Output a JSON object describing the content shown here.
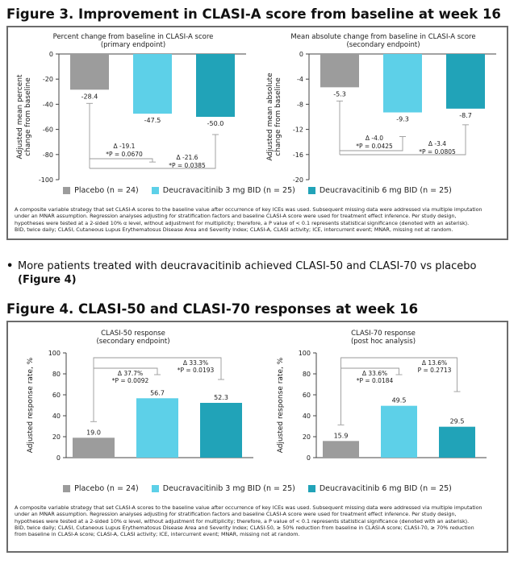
{
  "colors": {
    "placebo": "#9c9c9c",
    "deuc3": "#5dd0e8",
    "deuc6": "#21a3b8",
    "axis": "#444444",
    "bracket": "#9a9a9a",
    "border": "#6b6b6b"
  },
  "fig3": {
    "title": "Figure 3. Improvement in CLASI-A score from baseline at week 16",
    "legend": [
      "Placebo (n = 24)",
      "Deucravacitinib 3 mg BID (n = 25)",
      "Deucravacitinib 6 mg BID (n = 25)"
    ],
    "footnote_lines": [
      "A composite variable strategy that set CLASI-A scores to the baseline value after occurrence of key ICEs was used. Subsequent missing data were addressed via multiple imputation",
      "under an MNAR assumption. Regression analyses adjusting for stratification factors and baseline CLASI-A score were used for treatment effect inference. Per study design,",
      "hypotheses were tested at a 2-sided 10% α level, without adjustment for multiplicity; therefore, a P value of < 0.1 represents statistical significance (denoted with an asterisk).",
      "BID, twice daily; CLASI, Cutaneous Lupus Erythematosus Disease Area and Severity Index; CLASI-A, CLASI activity; ICE, intercurrent event; MNAR, missing not at random."
    ]
  },
  "bullet": {
    "text": "More patients treated with deucravacitinib achieved CLASI-50 and CLASI-70 vs placebo",
    "ref": "(Figure 4)"
  },
  "fig4": {
    "title": "Figure 4. CLASI-50 and CLASI-70 responses at week 16",
    "legend": [
      "Placebo (n = 24)",
      "Deucravacitinib 3 mg BID (n = 25)",
      "Deucravacitinib 6 mg BID (n = 25)"
    ],
    "footnote_lines": [
      "A composite variable strategy that set CLASI-A scores to the baseline value after occurrence of key ICEs was used. Subsequent missing data were addressed via multiple imputation",
      "under an MNAR assumption. Regression analyses adjusting for stratification factors and baseline CLASI-A score were used for treatment effect inference. Per study design,",
      "hypotheses were tested at a 2-sided 10% α level, without adjustment for multiplicity; therefore, a P value of < 0.1 represents statistical significance (denoted with an asterisk).",
      "BID, twice daily; CLASI, Cutaneous Lupus Erythematosus Disease Area and Severity Index; CLASI-50, ≥ 50% reduction from baseline in CLASI-A score; CLASI-70, ≥ 70% reduction",
      "from baseline in CLASI-A score; CLASI-A, CLASI activity; ICE, intercurrent event; MNAR, missing not at random."
    ]
  },
  "chart_data": [
    {
      "type": "bar",
      "title": "Percent change from baseline in CLASI-A score",
      "subtitle": "(primary endpoint)",
      "ylabel": "Adjusted mean percent change from baseline",
      "ylabel_lines": [
        "Adjusted mean percent",
        "change from baseline"
      ],
      "ylim": [
        -100,
        0
      ],
      "yticks": [
        0,
        -20,
        -40,
        -60,
        -80,
        -100
      ],
      "categories": [
        "Placebo",
        "Deucravacitinib 3 mg BID",
        "Deucravacitinib 6 mg BID"
      ],
      "values": [
        -28.4,
        -47.5,
        -50.0
      ],
      "value_labels": [
        "-28.4",
        "-47.5",
        "-50.0"
      ],
      "comparisons": [
        {
          "vs": "Deucravacitinib 3 mg BID",
          "delta": "Δ -19.1",
          "p": "*P = 0.0670"
        },
        {
          "vs": "Deucravacitinib 6 mg BID",
          "delta": "Δ -21.6",
          "p": "*P = 0.0385"
        }
      ]
    },
    {
      "type": "bar",
      "title": "Mean absolute change from baseline in CLASI-A score",
      "subtitle": "(secondary endpoint)",
      "ylabel": "Adjusted mean absolute change from baseline",
      "ylabel_lines": [
        "Adjusted mean absolute",
        "change from baseline"
      ],
      "ylim": [
        -20,
        0
      ],
      "yticks": [
        0,
        -4,
        -8,
        -12,
        -16,
        -20
      ],
      "categories": [
        "Placebo",
        "Deucravacitinib 3 mg BID",
        "Deucravacitinib 6 mg BID"
      ],
      "values": [
        -5.3,
        -9.3,
        -8.7
      ],
      "value_labels": [
        "-5.3",
        "-9.3",
        "-8.7"
      ],
      "comparisons": [
        {
          "vs": "Deucravacitinib 3 mg BID",
          "delta": "Δ -4.0",
          "p": "*P = 0.0425"
        },
        {
          "vs": "Deucravacitinib 6 mg BID",
          "delta": "Δ -3.4",
          "p": "*P = 0.0805"
        }
      ]
    },
    {
      "type": "bar",
      "title": "CLASI-50 response",
      "subtitle": "(secondary endpoint)",
      "ylabel": "Adjusted response rate, %",
      "ylabel_lines": [
        "Adjusted response rate, %"
      ],
      "ylim": [
        0,
        100
      ],
      "yticks": [
        0,
        20,
        40,
        60,
        80,
        100
      ],
      "categories": [
        "Placebo",
        "Deucravacitinib 3 mg BID",
        "Deucravacitinib 6 mg BID"
      ],
      "values": [
        19.0,
        56.7,
        52.3
      ],
      "value_labels": [
        "19.0",
        "56.7",
        "52.3"
      ],
      "comparisons": [
        {
          "vs": "Deucravacitinib 3 mg BID",
          "delta": "Δ 37.7%",
          "p": "*P = 0.0092"
        },
        {
          "vs": "Deucravacitinib 6 mg BID",
          "delta": "Δ 33.3%",
          "p": "*P = 0.0193"
        }
      ]
    },
    {
      "type": "bar",
      "title": "CLASI-70 response",
      "subtitle": "(post hoc analysis)",
      "ylabel": "Adjusted response rate, %",
      "ylabel_lines": [
        "Adjusted response rate, %"
      ],
      "ylim": [
        0,
        100
      ],
      "yticks": [
        0,
        20,
        40,
        60,
        80,
        100
      ],
      "categories": [
        "Placebo",
        "Deucravacitinib 3 mg BID",
        "Deucravacitinib 6 mg BID"
      ],
      "values": [
        15.9,
        49.5,
        29.5
      ],
      "value_labels": [
        "15.9",
        "49.5",
        "29.5"
      ],
      "comparisons": [
        {
          "vs": "Deucravacitinib 3 mg BID",
          "delta": "Δ 33.6%",
          "p": "*P = 0.0184"
        },
        {
          "vs": "Deucravacitinib 6 mg BID",
          "delta": "Δ 13.6%",
          "p": "P = 0.2713"
        }
      ]
    }
  ]
}
